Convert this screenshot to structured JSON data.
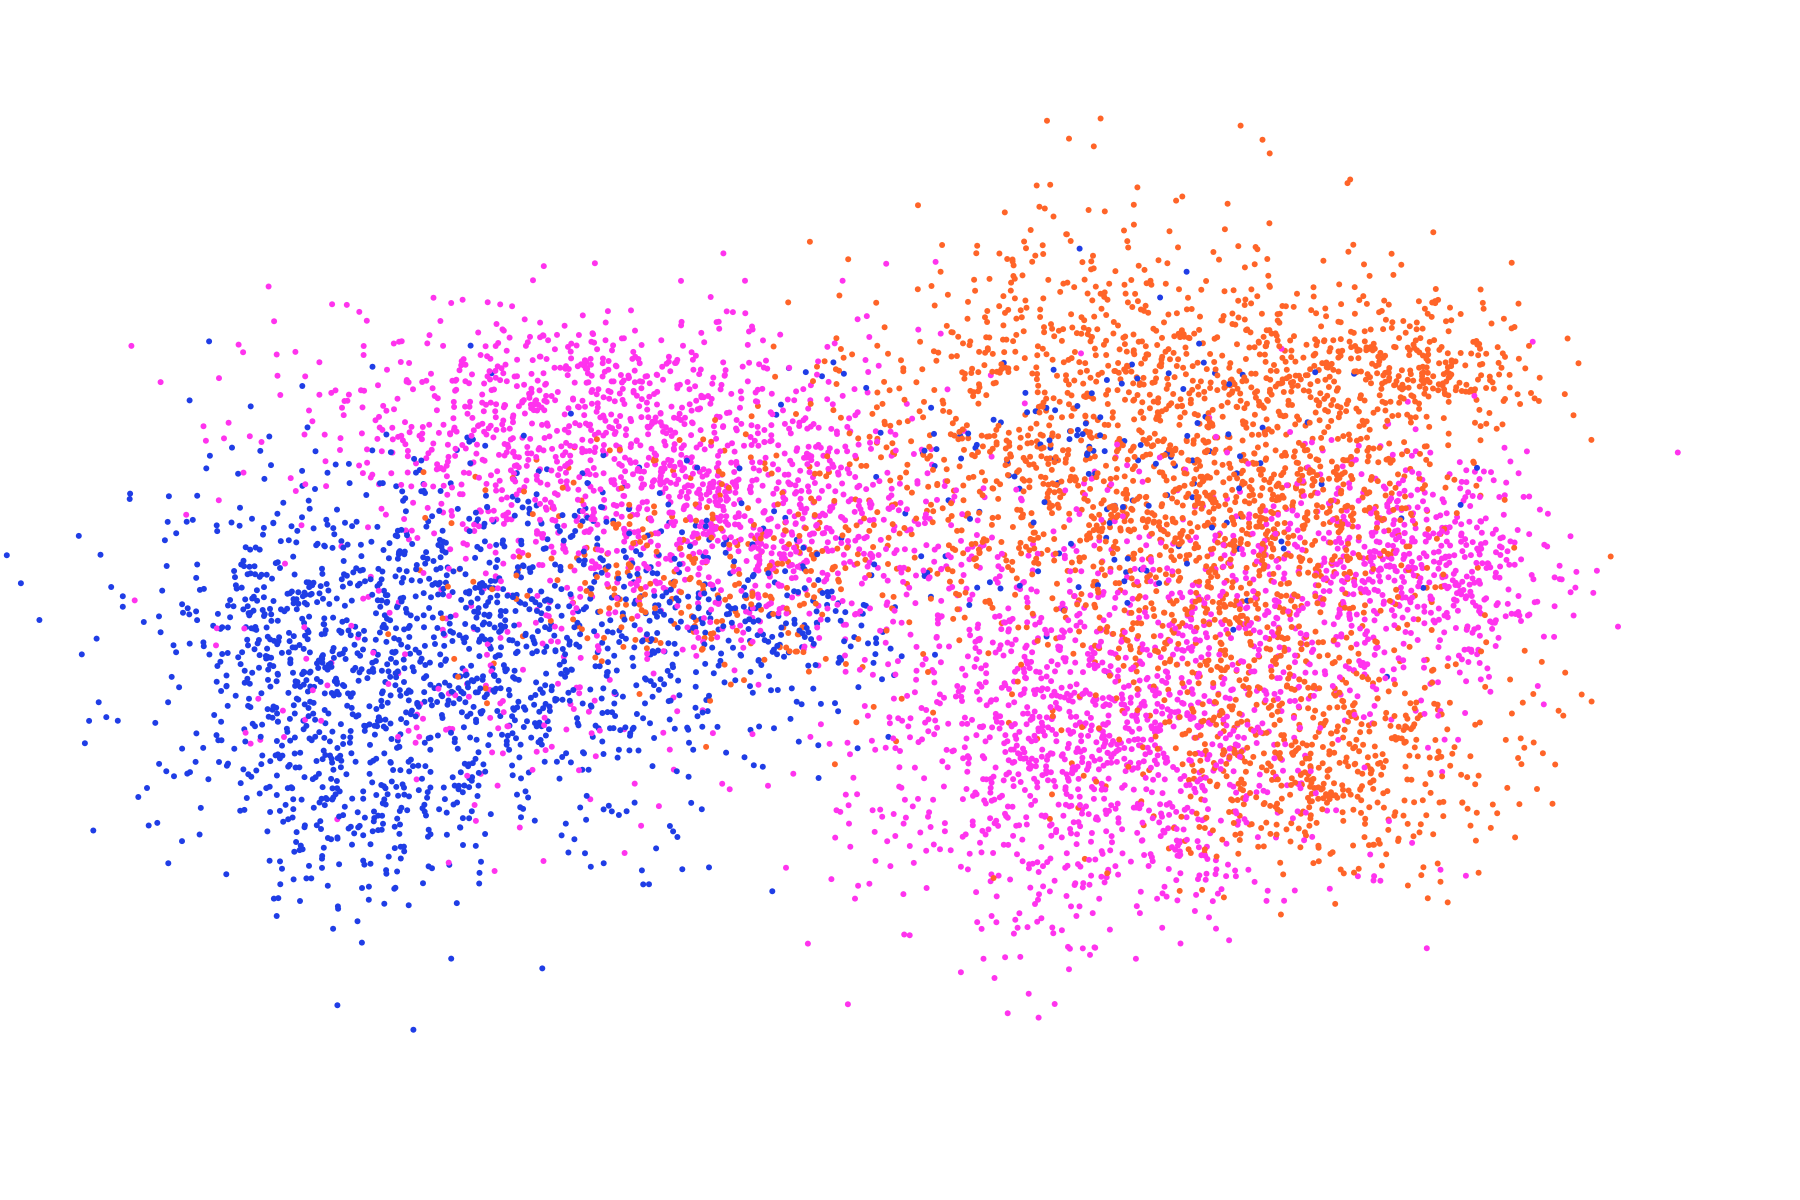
{
  "chart_data": {
    "type": "scatter",
    "title": "",
    "xlabel": "",
    "ylabel": "",
    "axes_visible": false,
    "grid": false,
    "legend": "none",
    "xlim": [
      -10,
      10
    ],
    "ylim": [
      -7,
      7
    ],
    "point_radius_hint": "small",
    "series": [
      {
        "name": "blue",
        "color": "#1f3de6",
        "clusters": [
          {
            "label": "left-body",
            "cx": -6.0,
            "cy": -0.7,
            "sx": 2.0,
            "sy": 1.5,
            "n": 1250
          },
          {
            "label": "left-bottom-lobe",
            "cx": -7.2,
            "cy": -3.3,
            "sx": 0.8,
            "sy": 0.75,
            "n": 190
          },
          {
            "label": "left-edge",
            "cx": -8.2,
            "cy": -0.6,
            "sx": 0.5,
            "sy": 0.9,
            "n": 140
          },
          {
            "label": "left-wing-streak",
            "cx": -2.0,
            "cy": -0.4,
            "sx": 1.1,
            "sy": 0.55,
            "n": 160
          },
          {
            "label": "right-upper-wing",
            "cx": 2.5,
            "cy": 2.1,
            "sx": 1.7,
            "sy": 1.3,
            "n": 150
          }
        ]
      },
      {
        "name": "magenta",
        "color": "#ff33ee",
        "clusters": [
          {
            "label": "left-top-arc",
            "cx": -4.1,
            "cy": 2.7,
            "sx": 2.0,
            "sy": 0.9,
            "n": 950
          },
          {
            "label": "left-wing-upper",
            "cx": -1.9,
            "cy": 1.0,
            "sx": 1.5,
            "sy": 0.8,
            "n": 600
          },
          {
            "label": "right-lower-wing",
            "cx": 2.7,
            "cy": -2.2,
            "sx": 1.6,
            "sy": 1.4,
            "n": 1250
          },
          {
            "label": "right-circle",
            "cx": 6.9,
            "cy": 0.4,
            "sx": 0.9,
            "sy": 0.9,
            "n": 520
          },
          {
            "label": "right-mid",
            "cx": 4.4,
            "cy": 0.3,
            "sx": 1.3,
            "sy": 1.0,
            "n": 220
          },
          {
            "label": "left-body-mix",
            "cx": -5.3,
            "cy": -1.0,
            "sx": 1.8,
            "sy": 1.2,
            "n": 180
          }
        ]
      },
      {
        "name": "orange",
        "color": "#ff6428",
        "clusters": [
          {
            "label": "right-upper-wing",
            "cx": 2.9,
            "cy": 2.5,
            "sx": 1.8,
            "sy": 1.6,
            "n": 1350
          },
          {
            "label": "right-top-blob",
            "cx": 6.5,
            "cy": 3.6,
            "sx": 1.0,
            "sy": 0.55,
            "n": 360
          },
          {
            "label": "right-center",
            "cx": 4.5,
            "cy": 0.3,
            "sx": 1.3,
            "sy": 1.0,
            "n": 420
          },
          {
            "label": "right-lower",
            "cx": 5.5,
            "cy": -2.4,
            "sx": 1.3,
            "sy": 0.9,
            "n": 560
          },
          {
            "label": "right-mid-scatter",
            "cx": 5.7,
            "cy": 1.7,
            "sx": 0.8,
            "sy": 0.5,
            "n": 140
          },
          {
            "label": "left-wing-mix",
            "cx": -2.5,
            "cy": 0.6,
            "sx": 1.7,
            "sy": 1.0,
            "n": 320
          }
        ]
      }
    ]
  }
}
